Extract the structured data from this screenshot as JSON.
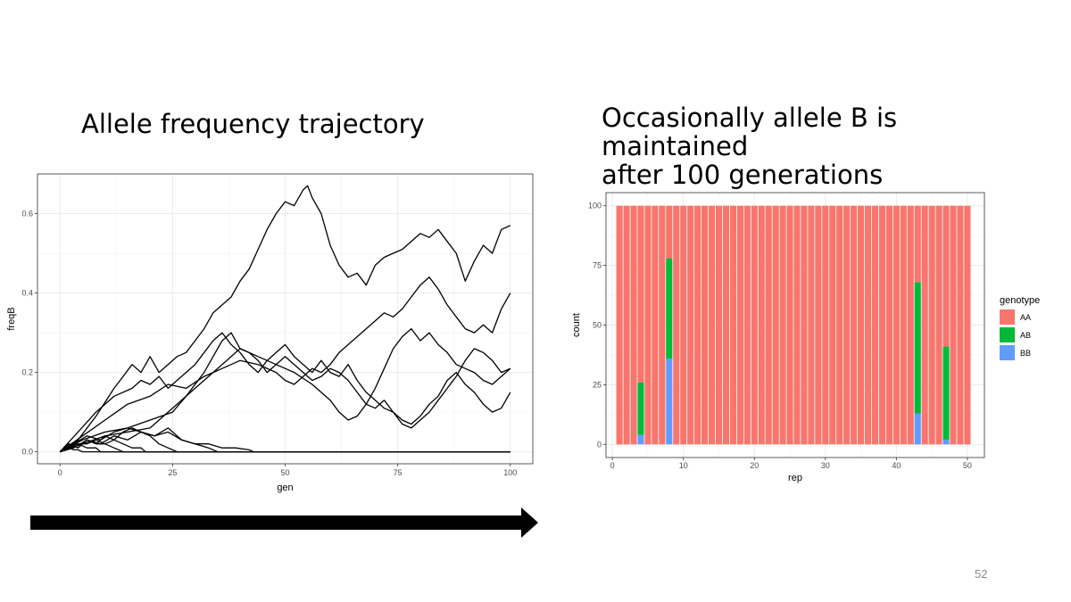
{
  "slide": {
    "left_title": "Allele frequency trajectory",
    "right_title_line1": "Occasionally allele B is maintained",
    "right_title_line2": "after 100 generations",
    "page_number": "52",
    "arrow_icon": "right-arrow-icon"
  },
  "chart_data": [
    {
      "type": "line",
      "title": "",
      "xlabel": "gen",
      "ylabel": "freqB",
      "xlim": [
        -5,
        105
      ],
      "ylim": [
        -0.03,
        0.7
      ],
      "x_ticks": [
        0,
        25,
        50,
        75,
        100
      ],
      "x_tick_labels": [
        "0",
        "25",
        "50",
        "75",
        "100"
      ],
      "y_ticks": [
        0.0,
        0.2,
        0.4,
        0.6
      ],
      "y_tick_labels": [
        "0.0",
        "0.2",
        "0.4",
        "0.6"
      ],
      "grid": true,
      "line_color": "#000000",
      "series": [
        {
          "x": [
            0,
            4,
            8,
            12,
            14,
            16,
            18,
            20,
            22,
            24,
            26,
            28,
            30,
            32,
            34,
            36,
            38,
            40,
            42,
            44,
            46,
            48,
            50,
            52,
            54,
            55,
            56,
            58,
            60,
            62,
            64,
            66,
            68,
            70,
            72,
            74,
            76,
            78,
            80,
            82,
            84,
            86,
            88,
            90,
            92,
            94,
            96,
            98,
            100
          ],
          "y": [
            0,
            0.03,
            0.09,
            0.16,
            0.19,
            0.22,
            0.2,
            0.24,
            0.2,
            0.22,
            0.24,
            0.25,
            0.28,
            0.31,
            0.35,
            0.37,
            0.39,
            0.43,
            0.46,
            0.51,
            0.56,
            0.6,
            0.63,
            0.62,
            0.66,
            0.67,
            0.64,
            0.6,
            0.52,
            0.47,
            0.44,
            0.45,
            0.42,
            0.47,
            0.49,
            0.5,
            0.51,
            0.53,
            0.55,
            0.54,
            0.56,
            0.53,
            0.5,
            0.43,
            0.48,
            0.52,
            0.5,
            0.56,
            0.57
          ]
        },
        {
          "x": [
            0,
            5,
            10,
            15,
            20,
            24,
            28,
            32,
            36,
            40,
            44,
            48,
            50,
            52,
            54,
            56,
            58,
            60,
            62,
            64,
            66,
            68,
            70,
            72,
            74,
            76,
            78,
            80,
            82,
            84,
            86,
            88,
            90,
            92,
            94,
            96,
            98,
            100
          ],
          "y": [
            0,
            0.04,
            0.08,
            0.12,
            0.14,
            0.17,
            0.16,
            0.19,
            0.21,
            0.23,
            0.22,
            0.2,
            0.18,
            0.17,
            0.19,
            0.21,
            0.2,
            0.22,
            0.25,
            0.27,
            0.29,
            0.31,
            0.33,
            0.35,
            0.34,
            0.36,
            0.39,
            0.42,
            0.44,
            0.41,
            0.37,
            0.34,
            0.31,
            0.3,
            0.32,
            0.3,
            0.36,
            0.4
          ]
        },
        {
          "x": [
            0,
            5,
            10,
            15,
            20,
            25,
            28,
            32,
            34,
            36,
            38,
            40,
            44,
            48,
            52,
            56,
            60,
            62,
            64,
            66,
            68,
            70,
            72,
            74,
            76,
            78,
            80,
            82,
            84,
            86,
            88,
            90,
            92,
            94,
            96,
            98,
            100
          ],
          "y": [
            0,
            0.03,
            0.05,
            0.06,
            0.08,
            0.1,
            0.14,
            0.2,
            0.24,
            0.28,
            0.3,
            0.26,
            0.24,
            0.22,
            0.2,
            0.17,
            0.13,
            0.1,
            0.08,
            0.09,
            0.12,
            0.16,
            0.21,
            0.26,
            0.29,
            0.31,
            0.28,
            0.3,
            0.27,
            0.25,
            0.22,
            0.21,
            0.2,
            0.18,
            0.17,
            0.19,
            0.21
          ]
        },
        {
          "x": [
            0,
            5,
            10,
            15,
            20,
            22,
            24,
            26,
            28,
            30,
            32,
            34,
            36,
            38,
            40,
            42,
            44,
            46,
            48,
            50,
            52,
            54,
            56,
            58,
            60,
            62,
            64,
            66,
            68,
            70,
            72,
            74,
            76,
            78,
            80,
            82,
            84,
            86,
            88,
            90,
            92,
            94,
            96,
            98,
            100
          ],
          "y": [
            0,
            0.02,
            0.04,
            0.05,
            0.06,
            0.08,
            0.1,
            0.12,
            0.14,
            0.16,
            0.18,
            0.2,
            0.22,
            0.24,
            0.26,
            0.25,
            0.23,
            0.2,
            0.22,
            0.24,
            0.22,
            0.2,
            0.18,
            0.19,
            0.21,
            0.2,
            0.18,
            0.15,
            0.12,
            0.11,
            0.13,
            0.1,
            0.08,
            0.07,
            0.09,
            0.12,
            0.14,
            0.18,
            0.2,
            0.17,
            0.15,
            0.12,
            0.1,
            0.11,
            0.15
          ]
        },
        {
          "x": [
            0,
            4,
            8,
            12,
            16,
            18,
            20,
            22,
            24,
            26,
            28,
            30,
            32,
            34,
            36,
            38,
            40,
            42,
            44,
            46,
            48,
            50,
            52,
            54,
            56,
            58,
            60,
            62,
            64,
            66,
            68,
            70,
            72,
            74,
            76,
            78,
            80,
            82,
            84,
            86,
            88,
            90,
            92,
            94,
            96,
            98,
            100
          ],
          "y": [
            0,
            0.05,
            0.1,
            0.14,
            0.16,
            0.18,
            0.17,
            0.19,
            0.16,
            0.18,
            0.2,
            0.22,
            0.25,
            0.28,
            0.3,
            0.27,
            0.25,
            0.22,
            0.2,
            0.23,
            0.25,
            0.27,
            0.24,
            0.22,
            0.2,
            0.23,
            0.2,
            0.19,
            0.22,
            0.18,
            0.15,
            0.13,
            0.11,
            0.1,
            0.07,
            0.06,
            0.08,
            0.1,
            0.13,
            0.16,
            0.19,
            0.23,
            0.26,
            0.25,
            0.23,
            0.2,
            0.21
          ]
        },
        {
          "x": [
            0,
            3,
            6,
            9,
            12,
            15,
            18,
            21,
            24,
            27,
            30,
            33,
            36,
            39,
            42,
            43,
            100
          ],
          "y": [
            0,
            0.02,
            0.04,
            0.03,
            0.05,
            0.06,
            0.05,
            0.04,
            0.05,
            0.03,
            0.02,
            0.02,
            0.01,
            0.01,
            0.005,
            0,
            0
          ]
        },
        {
          "x": [
            0,
            3,
            6,
            9,
            12,
            15,
            18,
            21,
            24,
            27,
            30,
            33,
            35,
            100
          ],
          "y": [
            0,
            0.01,
            0.03,
            0.02,
            0.04,
            0.03,
            0.05,
            0.04,
            0.06,
            0.03,
            0.02,
            0.01,
            0,
            0
          ]
        },
        {
          "x": [
            0,
            2,
            4,
            6,
            8,
            10,
            12,
            14,
            16,
            18,
            20,
            22,
            24,
            26,
            100
          ],
          "y": [
            0,
            0.02,
            0.01,
            0.03,
            0.02,
            0.04,
            0.03,
            0.05,
            0.06,
            0.05,
            0.04,
            0.02,
            0.01,
            0,
            0
          ]
        },
        {
          "x": [
            0,
            2,
            4,
            6,
            8,
            10,
            12,
            14,
            16,
            18,
            19,
            100
          ],
          "y": [
            0,
            0.01,
            0.02,
            0.02,
            0.03,
            0.02,
            0.03,
            0.02,
            0.01,
            0.01,
            0,
            0
          ]
        },
        {
          "x": [
            0,
            2,
            4,
            6,
            8,
            10,
            12,
            14,
            100
          ],
          "y": [
            0,
            0.02,
            0.01,
            0.03,
            0.02,
            0.02,
            0.01,
            0,
            0
          ]
        },
        {
          "x": [
            0,
            2,
            4,
            6,
            8,
            9,
            100
          ],
          "y": [
            0,
            0.01,
            0.02,
            0.01,
            0.01,
            0,
            0
          ]
        },
        {
          "x": [
            0,
            1,
            2,
            3,
            4,
            5,
            100
          ],
          "y": [
            0,
            0.005,
            0.01,
            0.005,
            0.005,
            0,
            0
          ]
        }
      ]
    },
    {
      "type": "bar",
      "stacked": true,
      "title": "",
      "xlabel": "rep",
      "ylabel": "count",
      "xlim": [
        -0.9,
        52.4
      ],
      "ylim": [
        -5.5,
        105.5
      ],
      "x_ticks": [
        0,
        10,
        20,
        30,
        40,
        50
      ],
      "x_tick_labels": [
        "0",
        "10",
        "20",
        "30",
        "40",
        "50"
      ],
      "y_ticks": [
        0,
        25,
        50,
        75,
        100
      ],
      "y_tick_labels": [
        "0",
        "25",
        "50",
        "75",
        "100"
      ],
      "grid": true,
      "legend_position": "right",
      "legend_title": "genotype",
      "categories": [
        1,
        2,
        3,
        4,
        5,
        6,
        7,
        8,
        9,
        10,
        11,
        12,
        13,
        14,
        15,
        16,
        17,
        18,
        19,
        20,
        21,
        22,
        23,
        24,
        25,
        26,
        27,
        28,
        29,
        30,
        31,
        32,
        33,
        34,
        35,
        36,
        37,
        38,
        39,
        40,
        41,
        42,
        43,
        44,
        45,
        46,
        47,
        48,
        49,
        50
      ],
      "series": [
        {
          "name": "BB",
          "color": "#619CFF",
          "values": [
            0,
            0,
            0,
            4,
            0,
            0,
            0,
            36,
            0,
            0,
            0,
            0,
            0,
            0,
            0,
            0,
            0,
            0,
            0,
            0,
            0,
            0,
            0,
            0,
            0,
            0,
            0,
            0,
            0,
            0,
            0,
            0,
            0,
            0,
            0,
            0,
            0,
            0,
            0,
            0,
            0,
            0,
            13,
            0,
            0,
            0,
            2,
            0,
            0,
            0
          ]
        },
        {
          "name": "AB",
          "color": "#00BA38",
          "values": [
            0,
            0,
            0,
            22,
            0,
            0,
            0,
            42,
            0,
            0,
            0,
            0,
            0,
            0,
            0,
            0,
            0,
            0,
            0,
            0,
            0,
            0,
            0,
            0,
            0,
            0,
            0,
            0,
            0,
            0,
            0,
            0,
            0,
            0,
            0,
            0,
            0,
            0,
            0,
            0,
            0,
            0,
            55,
            0,
            0,
            0,
            39,
            0,
            0,
            0
          ]
        },
        {
          "name": "AA",
          "color": "#F8766D",
          "values": [
            100,
            100,
            100,
            74,
            100,
            100,
            100,
            22,
            100,
            100,
            100,
            100,
            100,
            100,
            100,
            100,
            100,
            100,
            100,
            100,
            100,
            100,
            100,
            100,
            100,
            100,
            100,
            100,
            100,
            100,
            100,
            100,
            100,
            100,
            100,
            100,
            100,
            100,
            100,
            100,
            100,
            100,
            32,
            100,
            100,
            100,
            59,
            100,
            100,
            100
          ]
        }
      ],
      "legend_order": [
        "AA",
        "AB",
        "BB"
      ]
    }
  ]
}
